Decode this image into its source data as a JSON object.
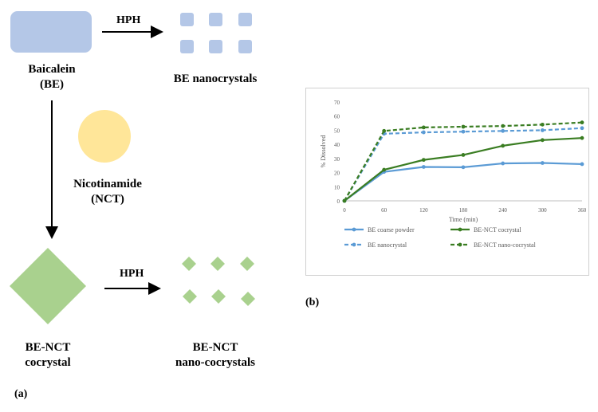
{
  "diagram": {
    "labels": {
      "baicalein": [
        "Baicalein",
        "(BE)"
      ],
      "be_nano": "BE nanocrystals",
      "nicotinamide": [
        "Nicotinamide",
        "(NCT)"
      ],
      "cocrystal": [
        "BE-NCT",
        "cocrystal"
      ],
      "nano_cocrystal": [
        "BE-NCT",
        "nano-cocrystals"
      ],
      "hph_top": "HPH",
      "hph_bottom": "HPH",
      "panel_a": "(a)",
      "panel_b": "(b)"
    },
    "colors": {
      "be_blue": "#b4c7e7",
      "nct_yellow": "#ffe699",
      "cocrystal_green": "#a9d18e"
    }
  },
  "chart_data": {
    "type": "line",
    "title": "",
    "xlabel": "Time (min)",
    "ylabel": "% Dissolved",
    "x": [
      0,
      60,
      120,
      180,
      240,
      300,
      360
    ],
    "xlim": [
      0,
      360
    ],
    "ylim": [
      0,
      70
    ],
    "yticks": [
      0,
      10,
      20,
      30,
      40,
      50,
      60,
      70
    ],
    "grid": false,
    "legend_position": "bottom",
    "series": [
      {
        "name": "BE coarse powder",
        "values": [
          0,
          20.5,
          24,
          23.8,
          26.5,
          26.8,
          26
        ],
        "color": "#5b9bd5",
        "dashed": false
      },
      {
        "name": "BE-NCT cocrystal",
        "values": [
          0,
          22,
          29,
          32.5,
          39,
          43,
          44.5
        ],
        "color": "#3a7d22",
        "dashed": false
      },
      {
        "name": "BE nanocrystal",
        "values": [
          0,
          47.5,
          48.5,
          49,
          49.5,
          50,
          51.5
        ],
        "color": "#5b9bd5",
        "dashed": true
      },
      {
        "name": "BE-NCT nano-cocrystal",
        "values": [
          0,
          49.5,
          52,
          52.5,
          53,
          54,
          55.5
        ],
        "color": "#3a7d22",
        "dashed": true
      }
    ]
  }
}
